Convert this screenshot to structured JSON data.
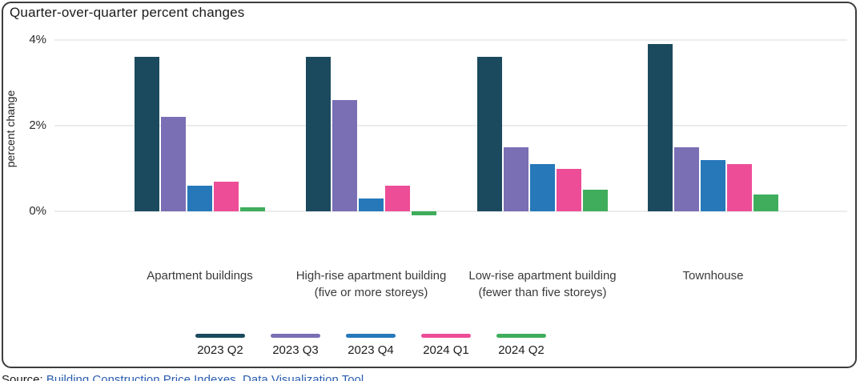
{
  "title": "Quarter-over-quarter percent changes",
  "chart": {
    "y_axis_label": "percent change",
    "y_tick_values": [
      4,
      2,
      0
    ],
    "y_tick_labels": [
      "4%",
      "2%",
      "0%"
    ]
  },
  "legend": {
    "items": [
      {
        "label": "2023 Q2",
        "color": "#1b4a5e"
      },
      {
        "label": "2023 Q3",
        "color": "#7a6eb5"
      },
      {
        "label": "2023 Q4",
        "color": "#2678b9"
      },
      {
        "label": "2024 Q1",
        "color": "#ed4d96"
      },
      {
        "label": "2024 Q2",
        "color": "#3fad5c"
      }
    ]
  },
  "footer": {
    "source_label": "Source:",
    "source_link_1": "Building Construction Price Indexes",
    "separator": ", ",
    "source_link_2": "Data Visualization Tool",
    "link_color": "#2a5db0"
  },
  "chart_data": {
    "type": "bar",
    "title": "Quarter-over-quarter percent changes",
    "xlabel": "",
    "ylabel": "percent change",
    "ylim": [
      -0.3,
      4.2
    ],
    "yticks": [
      0,
      2,
      4
    ],
    "grid": true,
    "legend_position": "bottom",
    "categories": [
      "Apartment buildings",
      "High-rise apartment building (five or more storeys)",
      "Low-rise apartment building (fewer than five storeys)",
      "Townhouse"
    ],
    "series": [
      {
        "name": "2023 Q2",
        "color": "#1b4a5e",
        "values": [
          3.6,
          3.6,
          3.6,
          3.9
        ]
      },
      {
        "name": "2023 Q3",
        "color": "#7a6eb5",
        "values": [
          2.2,
          2.6,
          1.5,
          1.5
        ]
      },
      {
        "name": "2023 Q4",
        "color": "#2678b9",
        "values": [
          0.6,
          0.3,
          1.1,
          1.2
        ]
      },
      {
        "name": "2024 Q1",
        "color": "#ed4d96",
        "values": [
          0.7,
          0.6,
          1.0,
          1.1
        ]
      },
      {
        "name": "2024 Q2",
        "color": "#3fad5c",
        "values": [
          0.1,
          -0.1,
          0.5,
          0.4
        ]
      }
    ]
  }
}
